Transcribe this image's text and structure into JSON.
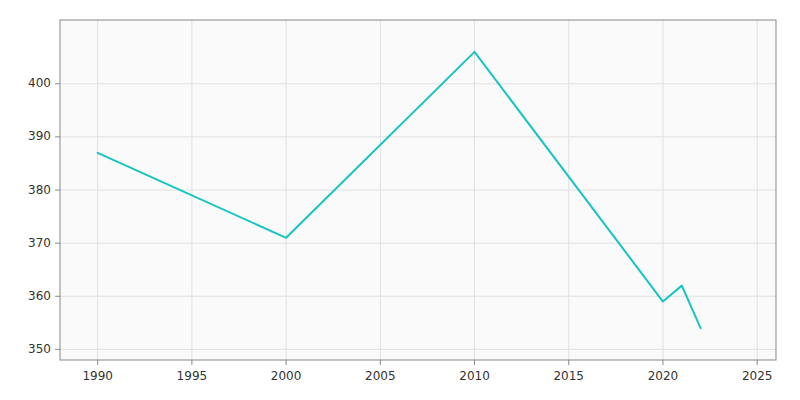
{
  "chart_data": {
    "type": "line",
    "x": [
      1990,
      2000,
      2010,
      2020,
      2021,
      2022
    ],
    "values": [
      387,
      371,
      406,
      359,
      362,
      354
    ],
    "color": "#17c3c3",
    "xlim": [
      1988,
      2026
    ],
    "ylim": [
      348,
      412
    ],
    "xticks": [
      1990,
      1995,
      2000,
      2005,
      2010,
      2015,
      2020,
      2025
    ],
    "yticks": [
      350,
      360,
      370,
      380,
      390,
      400
    ],
    "grid": true
  }
}
